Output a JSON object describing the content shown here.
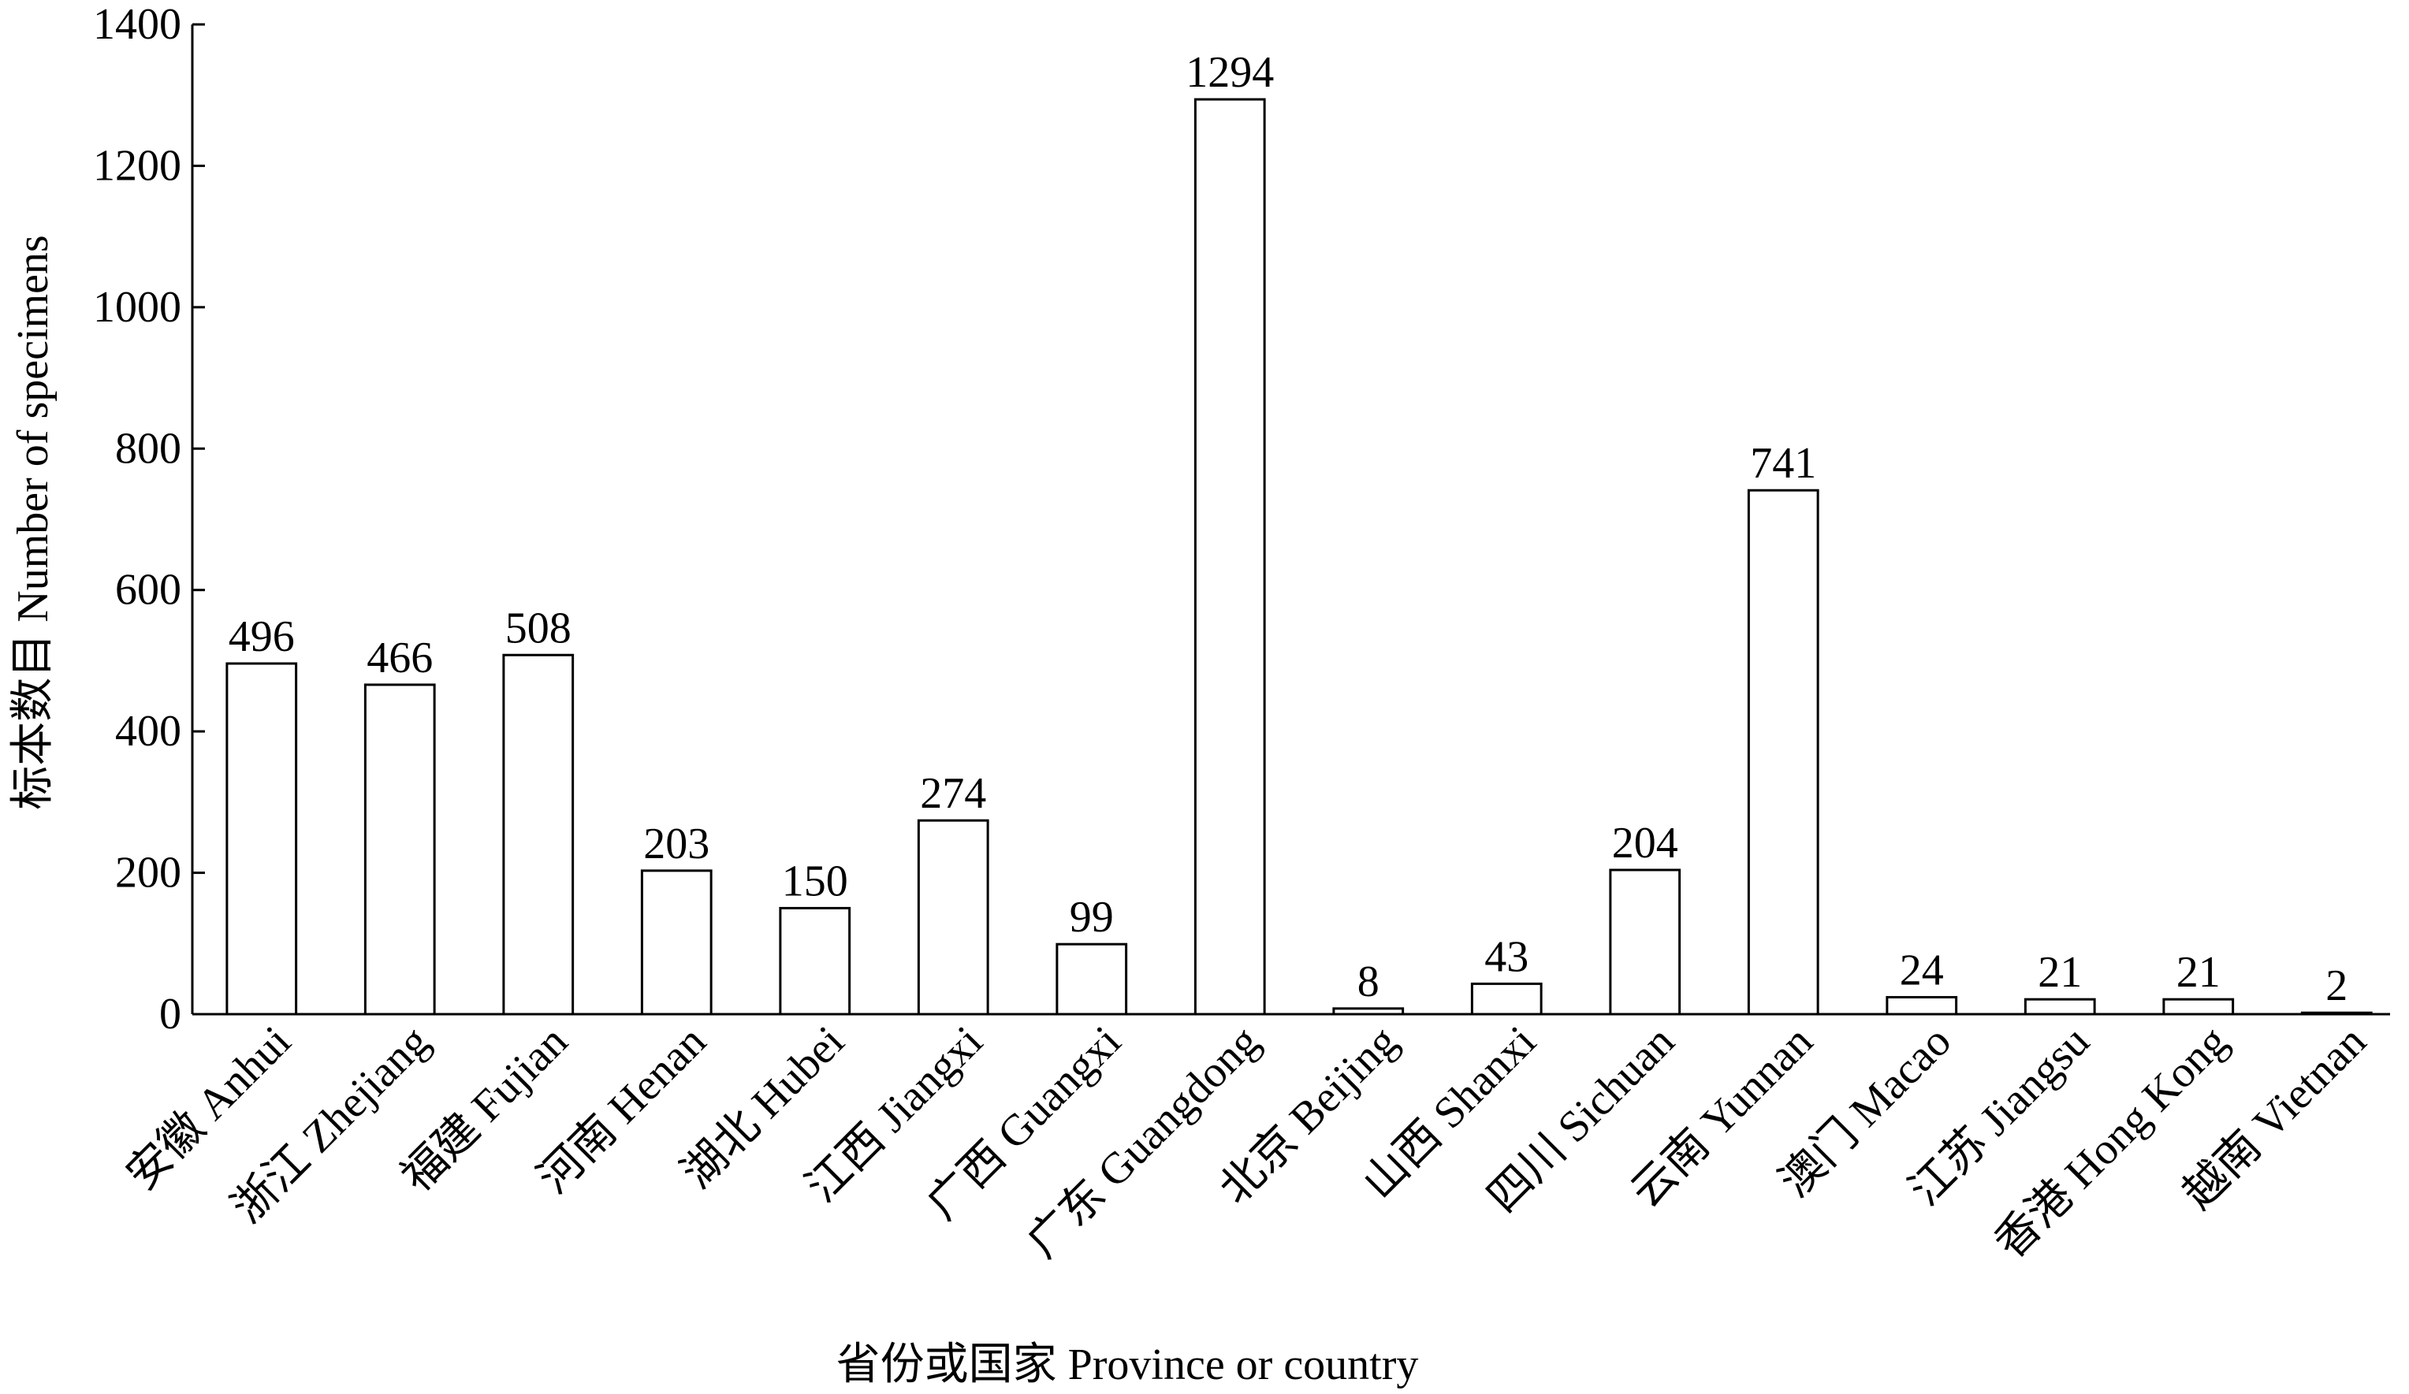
{
  "chart_data": {
    "type": "bar",
    "x_label": "省份或国家 Province or country",
    "y_label": "标本数目 Number of specimens",
    "categories": [
      "安徽 Anhui",
      "浙江 Zhejiang",
      "福建 Fujian",
      "河南 Henan",
      "湖北 Hubei",
      "江西 Jiangxi",
      "广西 Guangxi",
      "广东 Guangdong",
      "北京 Beijing",
      "山西 Shanxi",
      "四川 Sichuan",
      "云南 Yunnan",
      "澳门 Macao",
      "江苏 Jiangsu",
      "香港 Hong Kong",
      "越南 Vietnan"
    ],
    "values": [
      496,
      466,
      508,
      203,
      150,
      274,
      99,
      1294,
      8,
      43,
      204,
      741,
      24,
      21,
      21,
      2
    ],
    "color": "#ffffff",
    "ylim": [
      0,
      1400
    ],
    "yticks": [
      0,
      200,
      400,
      600,
      800,
      1000,
      1200,
      1400
    ]
  }
}
